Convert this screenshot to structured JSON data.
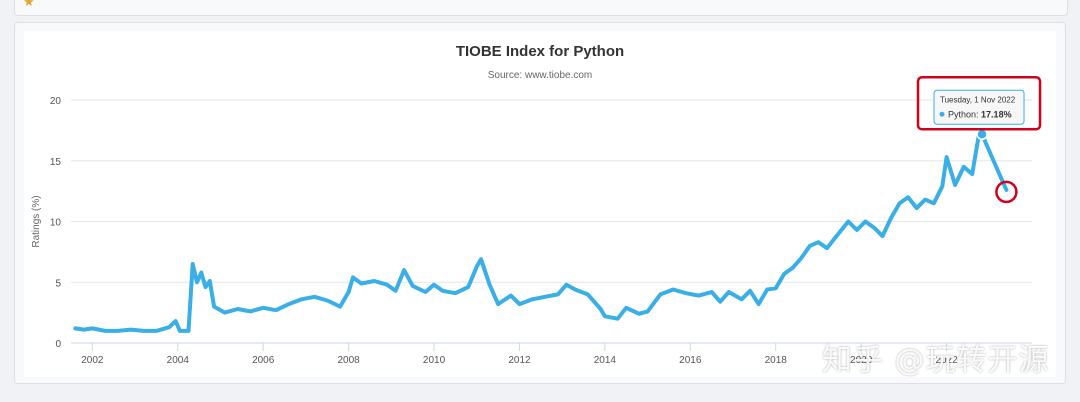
{
  "top_strip": {
    "star_icon": "star-icon"
  },
  "chart_data": {
    "type": "line",
    "title": "TIOBE Index for Python",
    "subtitle": "Source: www.tiobe.com",
    "ylabel": "Ratings (%)",
    "xlabel": "",
    "ylim": [
      0,
      20
    ],
    "xlim": [
      2001.5,
      2024.0
    ],
    "yticks": [
      0,
      5,
      10,
      15,
      20
    ],
    "xticks": [
      "2002",
      "2004",
      "2006",
      "2008",
      "2010",
      "2012",
      "2014",
      "2016",
      "2018",
      "2020",
      "2022"
    ],
    "grid": true,
    "series": [
      {
        "name": "Python",
        "color": "#3aaee6",
        "points": [
          [
            2001.6,
            1.2
          ],
          [
            2001.8,
            1.1
          ],
          [
            2002.0,
            1.2
          ],
          [
            2002.3,
            1.0
          ],
          [
            2002.6,
            1.0
          ],
          [
            2002.9,
            1.1
          ],
          [
            2003.2,
            1.0
          ],
          [
            2003.5,
            1.0
          ],
          [
            2003.8,
            1.3
          ],
          [
            2003.95,
            1.8
          ],
          [
            2004.05,
            1.0
          ],
          [
            2004.25,
            1.0
          ],
          [
            2004.35,
            6.5
          ],
          [
            2004.45,
            5.0
          ],
          [
            2004.55,
            5.8
          ],
          [
            2004.65,
            4.6
          ],
          [
            2004.75,
            5.1
          ],
          [
            2004.85,
            3.0
          ],
          [
            2005.1,
            2.5
          ],
          [
            2005.4,
            2.8
          ],
          [
            2005.7,
            2.6
          ],
          [
            2006.0,
            2.9
          ],
          [
            2006.3,
            2.7
          ],
          [
            2006.6,
            3.2
          ],
          [
            2006.9,
            3.6
          ],
          [
            2007.2,
            3.8
          ],
          [
            2007.5,
            3.5
          ],
          [
            2007.8,
            3.0
          ],
          [
            2008.0,
            4.2
          ],
          [
            2008.1,
            5.4
          ],
          [
            2008.3,
            4.9
          ],
          [
            2008.6,
            5.1
          ],
          [
            2008.9,
            4.8
          ],
          [
            2009.1,
            4.3
          ],
          [
            2009.3,
            6.0
          ],
          [
            2009.5,
            4.7
          ],
          [
            2009.8,
            4.2
          ],
          [
            2010.0,
            4.8
          ],
          [
            2010.2,
            4.3
          ],
          [
            2010.5,
            4.1
          ],
          [
            2010.8,
            4.6
          ],
          [
            2011.0,
            6.3
          ],
          [
            2011.1,
            6.9
          ],
          [
            2011.3,
            4.8
          ],
          [
            2011.5,
            3.2
          ],
          [
            2011.8,
            3.9
          ],
          [
            2012.0,
            3.2
          ],
          [
            2012.3,
            3.6
          ],
          [
            2012.6,
            3.8
          ],
          [
            2012.9,
            4.0
          ],
          [
            2013.1,
            4.8
          ],
          [
            2013.3,
            4.4
          ],
          [
            2013.6,
            4.0
          ],
          [
            2013.9,
            2.8
          ],
          [
            2014.0,
            2.2
          ],
          [
            2014.3,
            2.0
          ],
          [
            2014.5,
            2.9
          ],
          [
            2014.8,
            2.4
          ],
          [
            2015.0,
            2.6
          ],
          [
            2015.3,
            4.0
          ],
          [
            2015.6,
            4.4
          ],
          [
            2015.9,
            4.1
          ],
          [
            2016.2,
            3.9
          ],
          [
            2016.5,
            4.2
          ],
          [
            2016.7,
            3.4
          ],
          [
            2016.9,
            4.2
          ],
          [
            2017.2,
            3.6
          ],
          [
            2017.4,
            4.3
          ],
          [
            2017.6,
            3.2
          ],
          [
            2017.8,
            4.4
          ],
          [
            2018.0,
            4.5
          ],
          [
            2018.2,
            5.7
          ],
          [
            2018.4,
            6.2
          ],
          [
            2018.6,
            7.0
          ],
          [
            2018.8,
            8.0
          ],
          [
            2019.0,
            8.3
          ],
          [
            2019.2,
            7.8
          ],
          [
            2019.4,
            8.7
          ],
          [
            2019.7,
            10.0
          ],
          [
            2019.9,
            9.3
          ],
          [
            2020.1,
            10.0
          ],
          [
            2020.3,
            9.5
          ],
          [
            2020.5,
            8.8
          ],
          [
            2020.7,
            10.3
          ],
          [
            2020.9,
            11.5
          ],
          [
            2021.1,
            12.0
          ],
          [
            2021.3,
            11.1
          ],
          [
            2021.5,
            11.8
          ],
          [
            2021.7,
            11.5
          ],
          [
            2021.9,
            12.9
          ],
          [
            2022.0,
            15.3
          ],
          [
            2022.2,
            13.0
          ],
          [
            2022.4,
            14.5
          ],
          [
            2022.6,
            13.9
          ],
          [
            2022.75,
            17.0
          ],
          [
            2022.83,
            17.18
          ],
          [
            2023.0,
            15.8
          ],
          [
            2023.2,
            14.2
          ],
          [
            2023.4,
            12.6
          ]
        ]
      }
    ],
    "tooltip": {
      "date": "Tuesday, 1 Nov 2022",
      "series": "Python",
      "value": "17.18%"
    },
    "highlighted_point": {
      "x": 2022.83,
      "y": 17.18
    }
  },
  "overlay": {
    "watermark": "知乎 @玩转开源"
  },
  "colors": {
    "line": "#3aaee6",
    "highlight": "#d0021b",
    "grid": "#e6e6e6"
  }
}
